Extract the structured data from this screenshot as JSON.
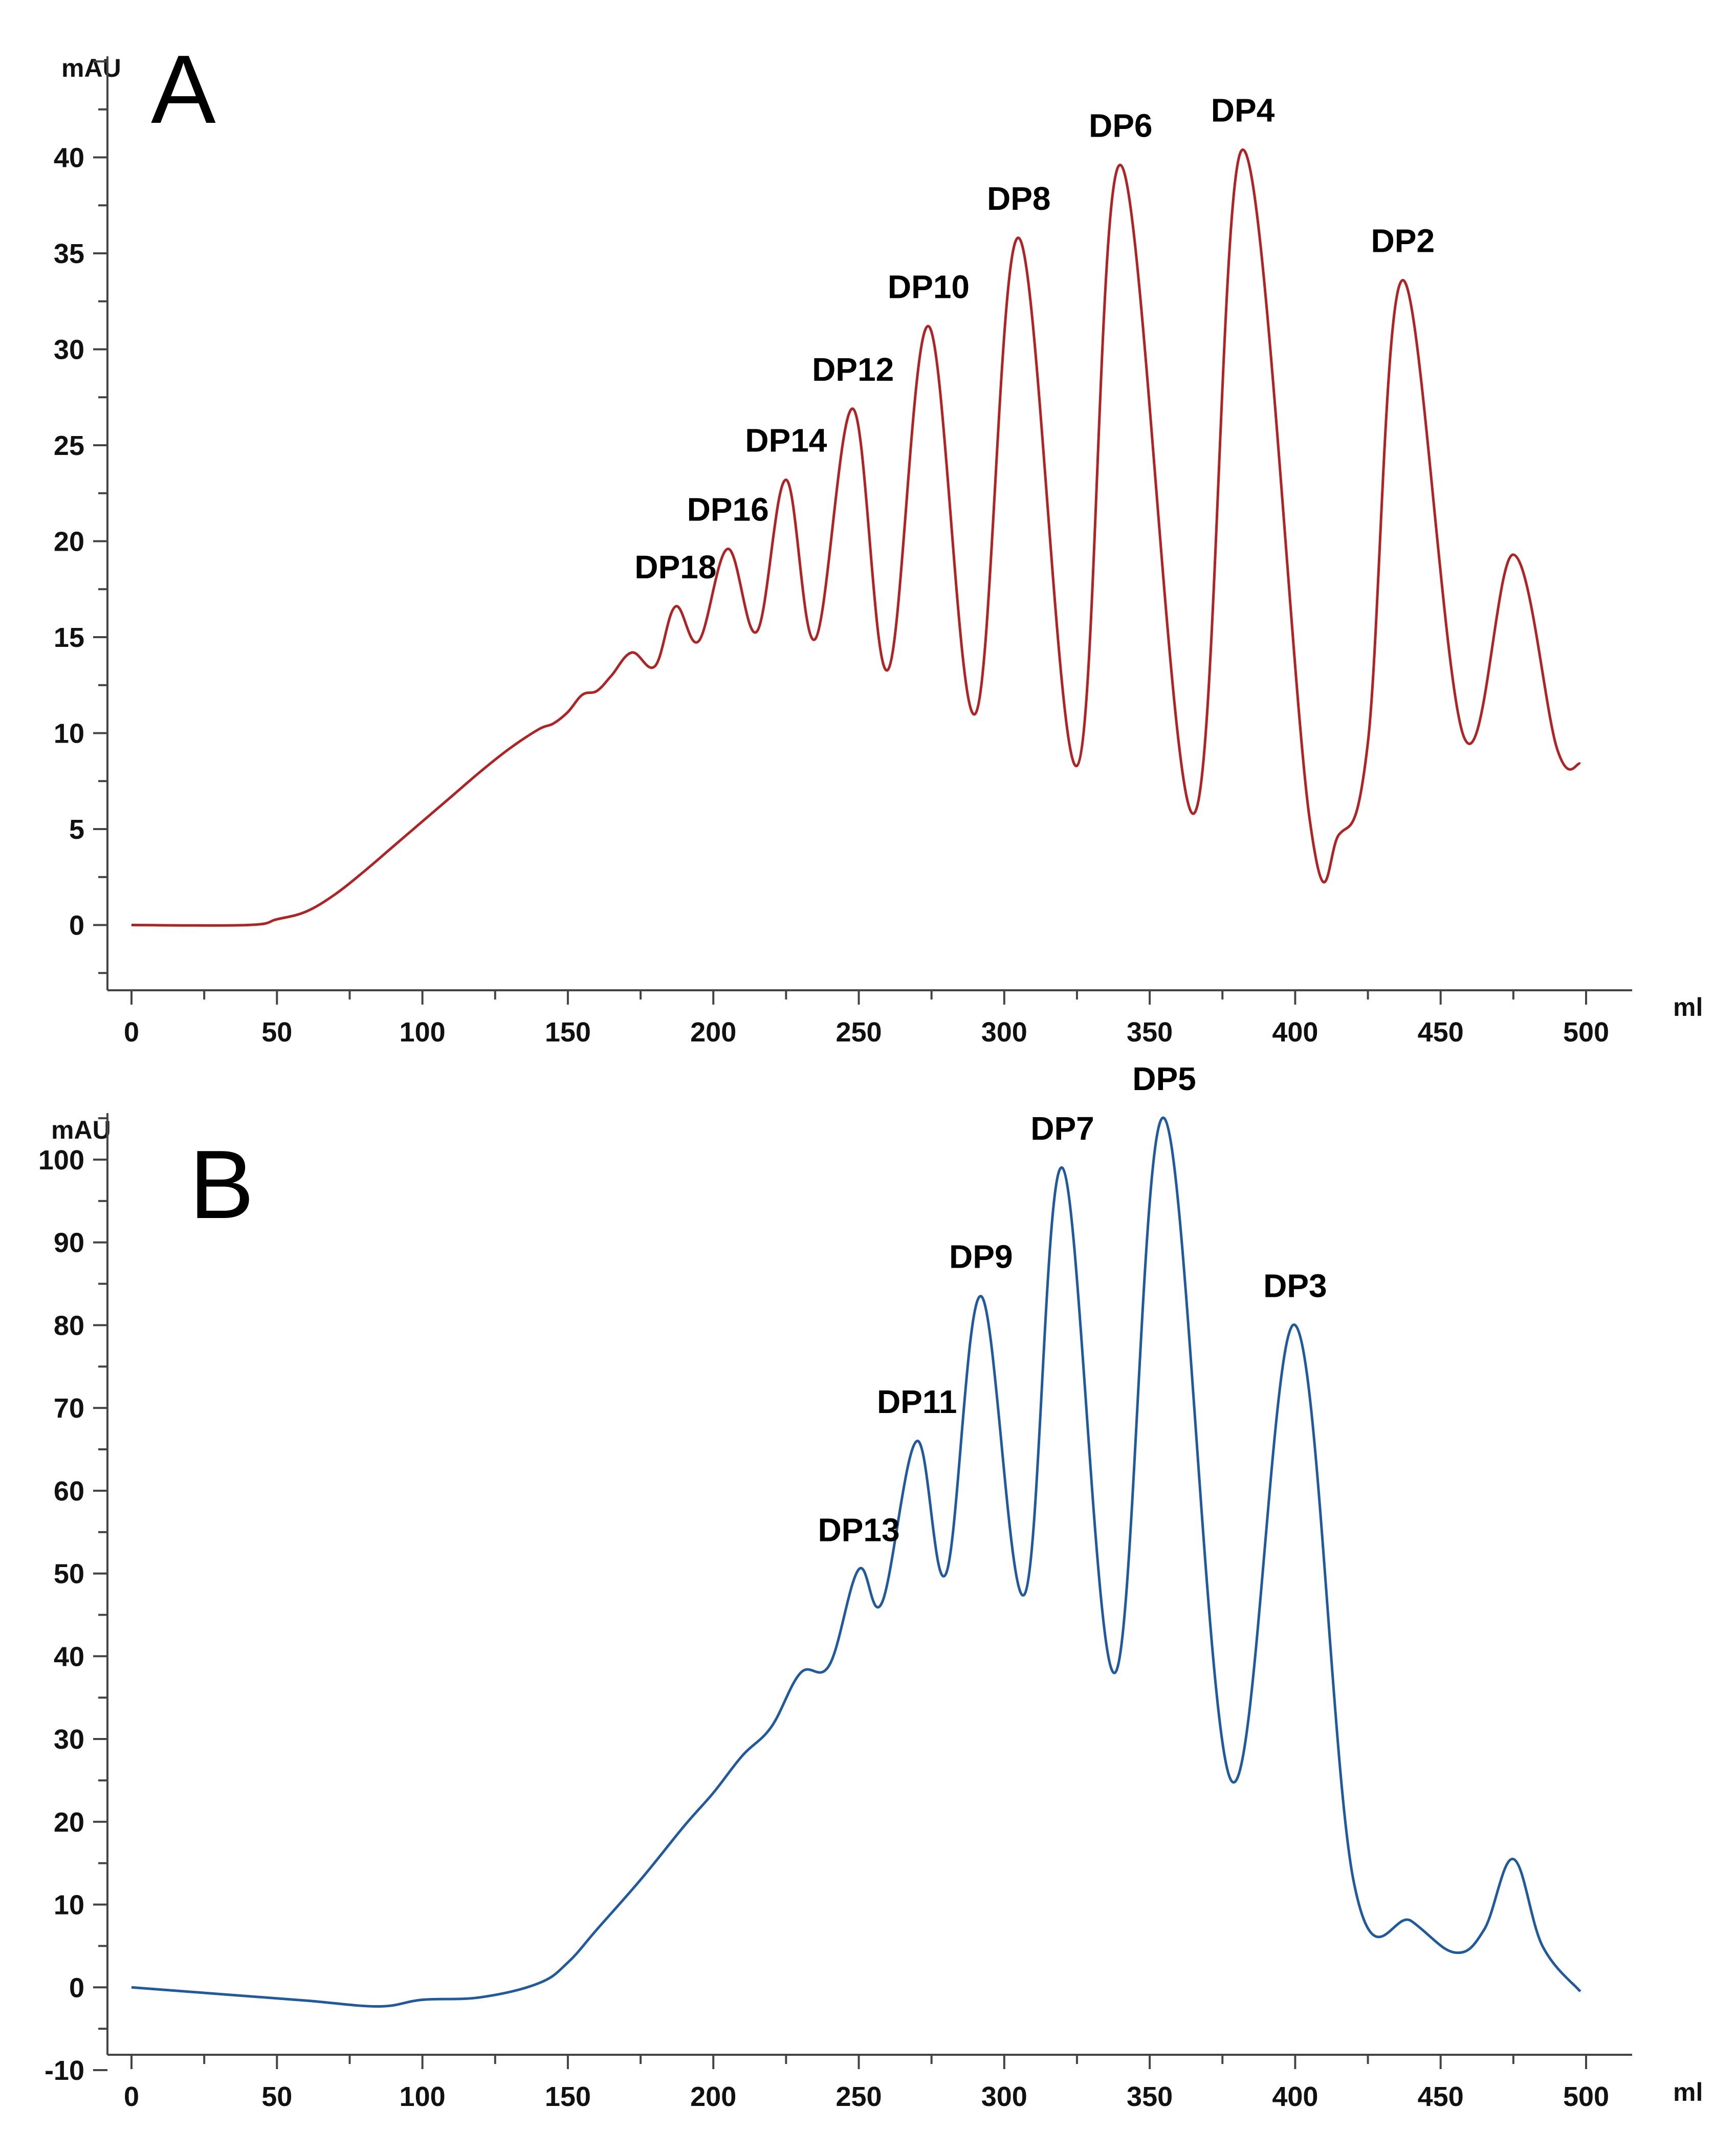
{
  "chart_data": [
    {
      "panel": "A",
      "type": "line",
      "ylabel": "mAU",
      "xlabel": "ml",
      "xlim": [
        0,
        500
      ],
      "ylim": [
        -3,
        45
      ],
      "xticks": [
        0,
        50,
        100,
        150,
        200,
        250,
        300,
        350,
        400,
        450,
        500
      ],
      "yticks": [
        0,
        5,
        10,
        15,
        20,
        25,
        30,
        35,
        40
      ],
      "color": "#b22222",
      "series": [
        {
          "name": "A",
          "x": [
            0,
            40,
            50,
            60,
            70,
            80,
            90,
            100,
            110,
            120,
            130,
            140,
            145,
            150,
            155,
            160,
            165,
            172,
            180,
            187,
            195,
            205,
            215,
            225,
            235,
            248,
            260,
            274,
            290,
            305,
            325,
            340,
            365,
            382,
            405,
            415,
            425,
            437,
            458,
            475,
            490,
            498
          ],
          "y": [
            0,
            0,
            0.3,
            0.7,
            1.6,
            2.8,
            4.1,
            5.4,
            6.7,
            8.0,
            9.2,
            10.2,
            10.5,
            11.1,
            12.0,
            12.2,
            13.0,
            14.2,
            13.5,
            16.6,
            14.8,
            19.6,
            15.3,
            23.2,
            14.9,
            26.9,
            13.3,
            31.2,
            11.0,
            35.8,
            8.3,
            39.6,
            5.8,
            40.4,
            5.5,
            4.7,
            9.5,
            33.6,
            9.8,
            19.3,
            9.2,
            8.4
          ]
        }
      ],
      "peaks": [
        {
          "label": "DP18",
          "x": 187,
          "y": 16.6
        },
        {
          "label": "DP16",
          "x": 205,
          "y": 19.6
        },
        {
          "label": "DP14",
          "x": 225,
          "y": 23.2
        },
        {
          "label": "DP12",
          "x": 248,
          "y": 26.9
        },
        {
          "label": "DP10",
          "x": 274,
          "y": 31.2
        },
        {
          "label": "DP8",
          "x": 305,
          "y": 35.8
        },
        {
          "label": "DP6",
          "x": 340,
          "y": 39.6
        },
        {
          "label": "DP4",
          "x": 382,
          "y": 40.4
        },
        {
          "label": "DP2",
          "x": 437,
          "y": 33.6
        }
      ]
    },
    {
      "panel": "B",
      "type": "line",
      "ylabel": "mAU",
      "xlabel": "ml",
      "xlim": [
        0,
        500
      ],
      "ylim": [
        -10,
        105
      ],
      "xticks": [
        0,
        50,
        100,
        150,
        200,
        250,
        300,
        350,
        400,
        450,
        500
      ],
      "yticks": [
        -10,
        0,
        10,
        20,
        30,
        40,
        50,
        60,
        70,
        80,
        90,
        100
      ],
      "color": "#1f5aa0",
      "series": [
        {
          "name": "B",
          "x": [
            0,
            30,
            60,
            85,
            100,
            120,
            140,
            150,
            160,
            175,
            190,
            200,
            210,
            220,
            230,
            240,
            250,
            258,
            270,
            280,
            292,
            307,
            320,
            338,
            355,
            378,
            400,
            420,
            440,
            455,
            465,
            475,
            485,
            498
          ],
          "y": [
            0,
            -0.8,
            -1.6,
            -2.3,
            -1.5,
            -1.2,
            0.5,
            3.0,
            7.0,
            13.0,
            19.5,
            23.5,
            28.0,
            31.5,
            38.0,
            39.0,
            50.5,
            46.5,
            66.0,
            50.0,
            83.5,
            47.5,
            99.0,
            38.0,
            105.0,
            25.0,
            80.0,
            13.0,
            8.0,
            4.2,
            7.0,
            15.5,
            5.0,
            -0.5
          ]
        }
      ],
      "peaks": [
        {
          "label": "DP13",
          "x": 250,
          "y": 50.5
        },
        {
          "label": "DP11",
          "x": 270,
          "y": 66.0
        },
        {
          "label": "DP9",
          "x": 292,
          "y": 83.5
        },
        {
          "label": "DP7",
          "x": 320,
          "y": 99.0
        },
        {
          "label": "DP5",
          "x": 355,
          "y": 105.0
        },
        {
          "label": "DP3",
          "x": 400,
          "y": 80.0
        }
      ]
    }
  ]
}
